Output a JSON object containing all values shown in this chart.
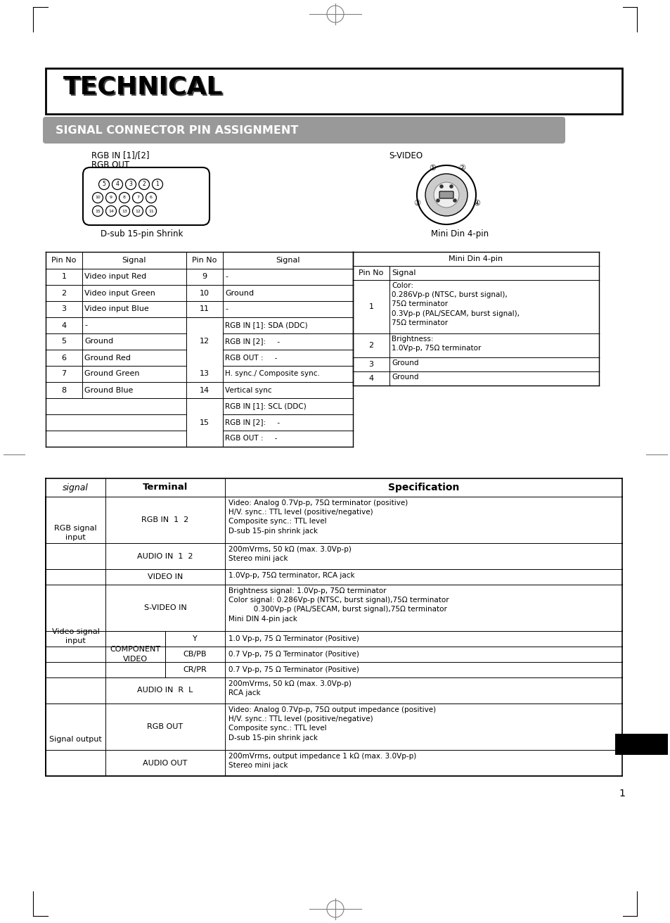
{
  "title": "TECHNICAL",
  "subtitle": "SIGNAL CONNECTOR PIN ASSIGNMENT",
  "bg_color": "#ffffff",
  "page_number": "1",
  "rgb_label1": "RGB IN [1]/[2]",
  "rgb_label2": "RGB OUT",
  "svideo_label": "S-VIDEO",
  "dsub_label": "D-sub 15-pin Shrink",
  "minidin_label": "Mini Din 4-pin",
  "pin_left": [
    [
      "1",
      "Video input Red"
    ],
    [
      "2",
      "Video input Green"
    ],
    [
      "3",
      "Video input Blue"
    ],
    [
      "4",
      "-"
    ],
    [
      "5",
      "Ground"
    ],
    [
      "6",
      "Ground Red"
    ],
    [
      "7",
      "Ground Green"
    ],
    [
      "8",
      "Ground Blue"
    ]
  ],
  "pin_right_simple": [
    [
      "9",
      "-"
    ],
    [
      "10",
      "Ground"
    ],
    [
      "11",
      "-"
    ]
  ],
  "pin_12_subs": [
    "RGB IN [1]: SDA (DDC)",
    "RGB IN [2]:     -",
    "RGB OUT :     -"
  ],
  "pin_13": "H. sync./ Composite sync.",
  "pin_14": "Vertical sync",
  "pin_15_subs": [
    "RGB IN [1]: SCL (DDC)",
    "RGB IN [2]:     -",
    "RGB OUT :     -"
  ],
  "minidin_rows": [
    {
      "pin": "1",
      "signal": "Color:\n0.286Vp-p (NTSC, burst signal),\n75Ω terminator\n0.3Vp-p (PAL/SECAM, burst signal),\n75Ω terminator",
      "lines": 5
    },
    {
      "pin": "2",
      "signal": "Brightness:\n1.0Vp-p, 75Ω terminator",
      "lines": 2
    },
    {
      "pin": "3",
      "signal": "Ground",
      "lines": 1
    },
    {
      "pin": "4",
      "signal": "Ground",
      "lines": 1
    }
  ],
  "spec_rgb_rows": [
    {
      "name": "RGB IN  1  2",
      "spec": "Video: Analog 0.7Vp-p, 75Ω terminator (positive)\nH/V. sync.: TTL level (positive/negative)\nComposite sync.: TTL level\nD-sub 15-pin shrink jack",
      "lines": 4
    },
    {
      "name": "AUDIO IN  1  2",
      "spec": "200mVrms, 50 kΩ (max. 3.0Vp-p)\nStereo mini jack",
      "lines": 2
    }
  ],
  "spec_video_rows": [
    {
      "name": "VIDEO IN",
      "spec": "1.0Vp-p, 75Ω terminator, RCA jack",
      "lines": 1
    },
    {
      "name": "S-VIDEO IN",
      "spec": "Brightness signal: 1.0Vp-p, 75Ω terminator\nColor signal: 0.286Vp-p (NTSC, burst signal),75Ω terminator\n           0.300Vp-p (PAL/SECAM, burst signal),75Ω terminator\nMini DIN 4-pin jack",
      "lines": 4
    }
  ],
  "comp_subs": [
    {
      "name": "Y",
      "spec": "1.0 Vp-p, 75 Ω Terminator (Positive)"
    },
    {
      "name": "CB/PB",
      "spec": "0.7 Vp-p, 75 Ω Terminator (Positive)"
    },
    {
      "name": "CR/PR",
      "spec": "0.7 Vp-p, 75 Ω Terminator (Positive)"
    }
  ],
  "audio_rl": {
    "name": "AUDIO IN  R  L",
    "spec": "200mVrms, 50 kΩ (max. 3.0Vp-p)\nRCA jack",
    "lines": 2
  },
  "spec_out_rows": [
    {
      "name": "RGB OUT",
      "spec": "Video: Analog 0.7Vp-p, 75Ω output impedance (positive)\nH/V. sync.: TTL level (positive/negative)\nComposite sync.: TTL level\nD-sub 15-pin shrink jack",
      "lines": 4
    },
    {
      "name": "AUDIO OUT",
      "spec": "200mVrms, output impedance 1 kΩ (max. 3.0Vp-p)\nStereo mini jack",
      "lines": 2
    }
  ]
}
